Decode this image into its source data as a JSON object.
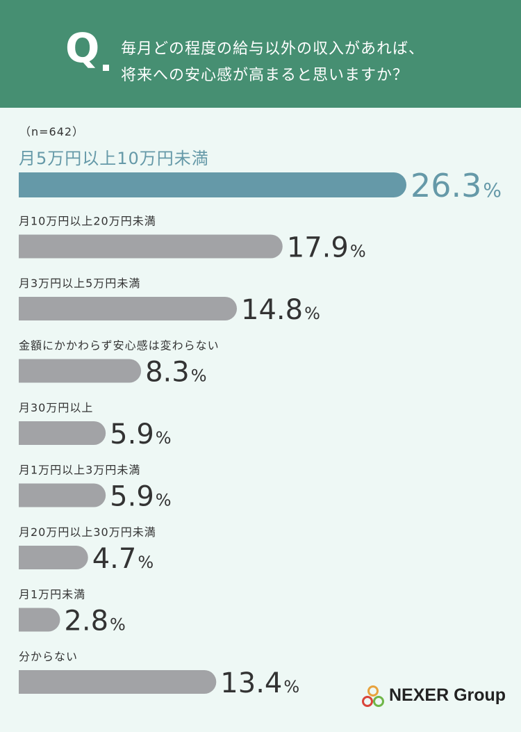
{
  "header": {
    "q_mark": "Q",
    "question_line_1": "毎月どの程度の給与以外の収入があれば、",
    "question_line_2": "将来への安心感が高まると思いますか？",
    "background_color": "#468f72"
  },
  "sample_size": "（n=642）",
  "logo": {
    "text": "NEXER Group",
    "icon": "nexer-rings-icon"
  },
  "chart_data": {
    "type": "bar",
    "orientation": "horizontal",
    "categories": [
      "月5万円以上10万円未満",
      "月10万円以上20万円未満",
      "月3万円以上5万円未満",
      "金額にかかわらず安心感は変わらない",
      "月30万円以上",
      "月1万円以上3万円未満",
      "月20万円以上30万円未満",
      "月1万円未満",
      "分からない"
    ],
    "values": [
      26.3,
      17.9,
      14.8,
      8.3,
      5.9,
      5.9,
      4.7,
      2.8,
      13.4
    ],
    "value_labels": [
      "26.3",
      "17.9",
      "14.8",
      "8.3",
      "5.9",
      "5.9",
      "4.7",
      "2.8",
      "13.4"
    ],
    "unit": "%",
    "highlight_index": 0,
    "highlight_color": "#6599a8",
    "bar_color": "#a2a3a6",
    "xlim": [
      0,
      26.3
    ]
  }
}
